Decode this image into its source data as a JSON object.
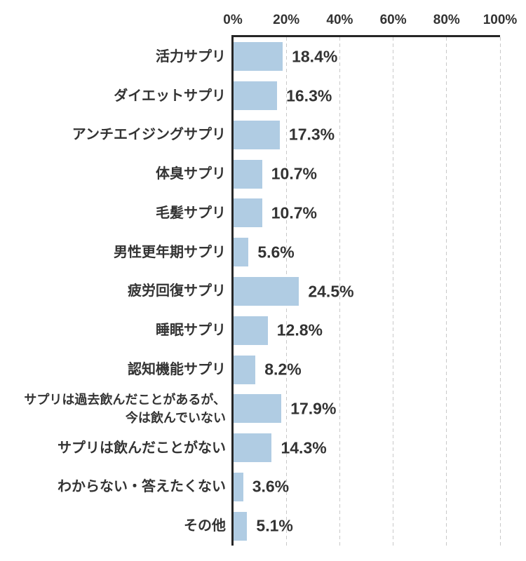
{
  "chart_data": {
    "type": "bar",
    "orientation": "horizontal",
    "title": "",
    "xlabel": "",
    "ylabel": "",
    "categories": [
      "活力サプリ",
      "ダイエットサプリ",
      "アンチエイジングサプリ",
      "体臭サプリ",
      "毛髪サプリ",
      "男性更年期サプリ",
      "疲労回復サプリ",
      "睡眠サプリ",
      "認知機能サプリ",
      "サプリは過去飲んだことがあるが、\n今は飲んでいない",
      "サプリは飲んだことがない",
      "わからない・答えたくない",
      "その他"
    ],
    "values": [
      18.4,
      16.3,
      17.3,
      10.7,
      10.7,
      5.6,
      24.5,
      12.8,
      8.2,
      17.9,
      14.3,
      3.6,
      5.1
    ],
    "value_suffix": "%",
    "xlim": [
      0,
      100
    ],
    "x_ticks": [
      "0%",
      "20%",
      "40%",
      "60%",
      "80%",
      "100%"
    ],
    "x_tick_values": [
      0,
      20,
      40,
      60,
      80,
      100
    ],
    "axis_position": "top",
    "grid": "vertical-dashed",
    "legend": "none",
    "colors": {
      "bar": "#b0cce3",
      "axis_line": "#262626",
      "gridline": "#c9c9c9",
      "text": "#333333",
      "background": "#ffffff"
    }
  }
}
